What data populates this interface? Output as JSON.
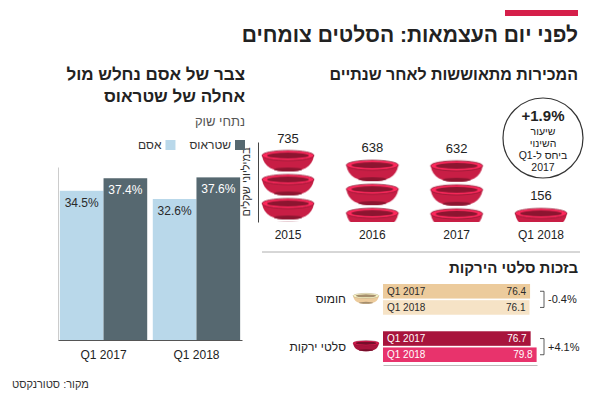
{
  "title": "לפני יום העצמאות: הסלטים צומחים",
  "source": "מקור: סטורנקסט",
  "chart_data": [
    {
      "type": "bar",
      "title": "המכירות מתאוששות לאחר שנתיים",
      "y_label": "במיליוני שקלים",
      "categories": [
        "2015",
        "2016",
        "2017",
        "Q1 2018"
      ],
      "values": [
        735,
        638,
        632,
        156
      ],
      "color": "#c81e45",
      "ylim": [
        0,
        800
      ],
      "data_labels": true,
      "tick_labels": "x",
      "annotation": {
        "label": "+1.9%",
        "lines": [
          "שיעור",
          "השינוי",
          "ביחס ל-Q1",
          "2017"
        ]
      }
    },
    {
      "type": "bar",
      "orientation": "horizontal",
      "title": "בזכות סלטי הירקות",
      "categories": [
        "חומוס",
        "סלטי ירקות"
      ],
      "series": [
        {
          "name": "Q1 2017",
          "colors": [
            "#eccb9c",
            "#a8143c"
          ],
          "values": [
            76.4,
            76.7
          ]
        },
        {
          "name": "Q1 2018",
          "colors": [
            "#f6e3c6",
            "#e8336c"
          ],
          "values": [
            76.1,
            79.8
          ]
        }
      ],
      "xlim": [
        0,
        80
      ],
      "data_labels": true,
      "tick_labels": false,
      "annotations": [
        "-0.4%",
        "+4.1%"
      ]
    },
    {
      "type": "bar",
      "title": [
        "צבר של אסם נחלש מול",
        "אחלה של שטראוס"
      ],
      "subtitle": "נתחי שוק",
      "categories": [
        "Q1 2017",
        "Q1 2018"
      ],
      "series": [
        {
          "name": "אסם",
          "color": "#b9d8ea",
          "values": [
            34.5,
            32.6
          ],
          "value_labels": [
            "34.5%",
            "32.6%"
          ]
        },
        {
          "name": "שטראוס",
          "color": "#566870",
          "values": [
            37.4,
            37.6
          ],
          "value_labels": [
            "37.4%",
            "37.6%"
          ]
        }
      ],
      "ylim": [
        0,
        40
      ],
      "data_labels": true,
      "tick_labels": "x",
      "legend": "top-right"
    }
  ]
}
